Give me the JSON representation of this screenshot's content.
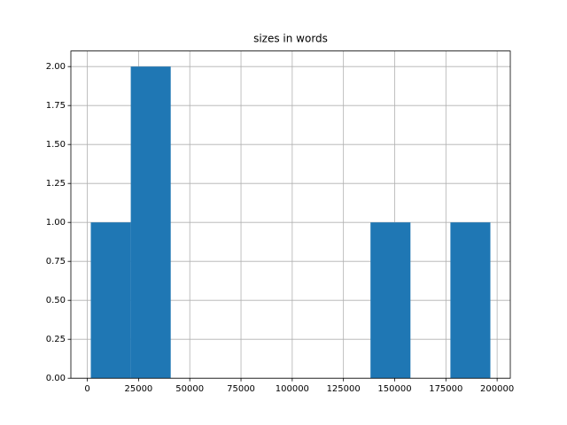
{
  "chart_data": {
    "type": "histogram",
    "title": "sizes in words",
    "bins": [
      1700,
      21200,
      40700,
      60200,
      79700,
      99200,
      118700,
      138200,
      157700,
      177200,
      196700
    ],
    "counts": [
      1,
      2,
      0,
      0,
      0,
      0,
      0,
      1,
      0,
      1
    ],
    "color": "#1f77b4",
    "xlim": [
      -8030,
      206430
    ],
    "xticks": [
      0,
      25000,
      50000,
      75000,
      100000,
      125000,
      150000,
      175000,
      200000
    ],
    "ylim": [
      0,
      2.1
    ],
    "yticks": [
      {
        "value": 0,
        "label": "0.00"
      },
      {
        "value": 0.25,
        "label": "0.25"
      },
      {
        "value": 0.5,
        "label": "0.50"
      },
      {
        "value": 0.75,
        "label": "0.75"
      },
      {
        "value": 1,
        "label": "1.00"
      },
      {
        "value": 1.25,
        "label": "1.25"
      },
      {
        "value": 1.5,
        "label": "1.50"
      },
      {
        "value": 1.75,
        "label": "1.75"
      },
      {
        "value": 2,
        "label": "2.00"
      }
    ],
    "grid": true
  }
}
